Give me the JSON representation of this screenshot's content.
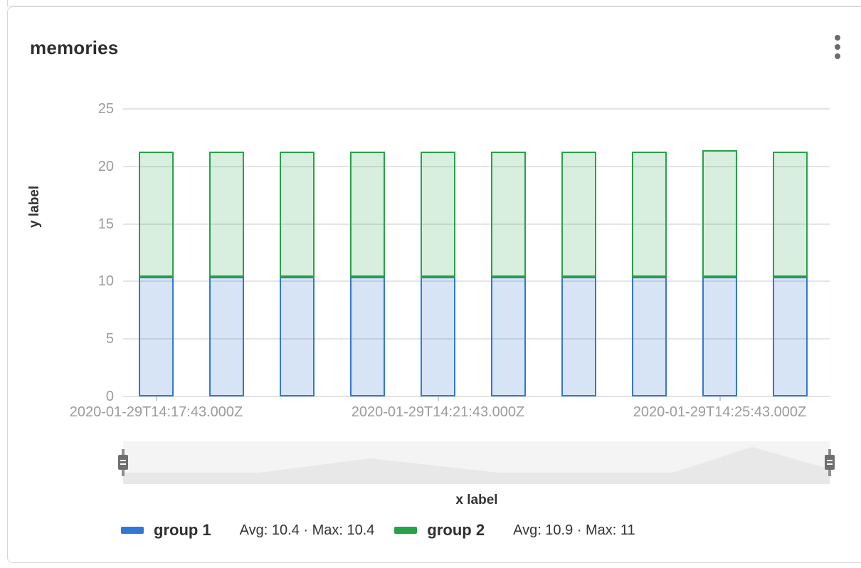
{
  "panel": {
    "title": "memories",
    "menu_icon": "kebab-vertical-icon"
  },
  "chart_data": {
    "type": "bar",
    "stacked": true,
    "title": "memories",
    "xlabel": "x label",
    "ylabel": "y label",
    "ylim": [
      0,
      25
    ],
    "y_ticks": [
      0,
      5,
      10,
      15,
      20,
      25
    ],
    "grid": true,
    "legend_position": "bottom",
    "bar_count": 10,
    "x_tick_labels": [
      "2020-01-29T14:17:43.000Z",
      "2020-01-29T14:21:43.000Z",
      "2020-01-29T14:25:43.000Z"
    ],
    "x_tick_indices": [
      0,
      4,
      8
    ],
    "series": [
      {
        "name": "group 1",
        "color": "#3377d4",
        "fill": "rgba(51,119,212,0.2)",
        "avg": 10.4,
        "max": 10.4,
        "stats": "Avg: 10.4 · Max: 10.4",
        "values": [
          10.4,
          10.4,
          10.4,
          10.4,
          10.4,
          10.4,
          10.4,
          10.4,
          10.4,
          10.4
        ]
      },
      {
        "name": "group 2",
        "color": "#26a248",
        "fill": "rgba(38,162,73,0.18)",
        "avg": 10.9,
        "max": 11,
        "stats": "Avg: 10.9 · Max: 11",
        "values": [
          10.9,
          10.9,
          10.9,
          10.9,
          10.9,
          10.9,
          10.9,
          10.9,
          11,
          10.9
        ]
      }
    ]
  },
  "navigator": {
    "role": "time-range-brush",
    "track_color": "#f4f4f4",
    "area_color": "#e8e8e8",
    "handle_color": "#6e6e6e"
  }
}
